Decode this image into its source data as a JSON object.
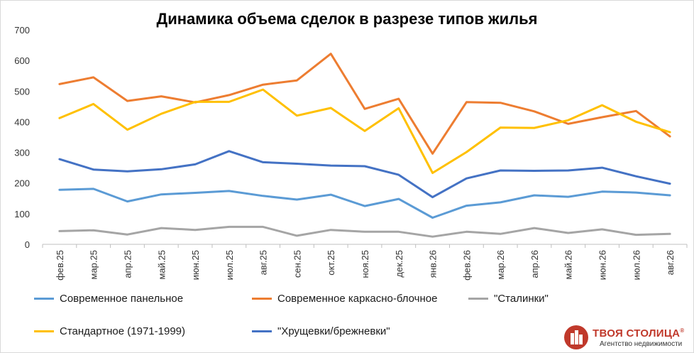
{
  "chart_data": {
    "type": "line",
    "title": "Динамика объема сделок в разрезе типов жилья",
    "xlabel": "",
    "ylabel": "",
    "ylim": [
      0,
      700
    ],
    "yticks": [
      "0",
      "100",
      "200",
      "300",
      "400",
      "500",
      "600",
      "700"
    ],
    "grid": false,
    "legend_position": "bottom",
    "categories": [
      "фев.25",
      "мар.25",
      "апр.25",
      "май.25",
      "июн.25",
      "июл.25",
      "авг.25",
      "сен.25",
      "окт.25",
      "ноя.25",
      "дек.25",
      "янв.26",
      "фев.26",
      "мар.26",
      "апр.26",
      "май.26",
      "июн.26",
      "июл.26",
      "авг.26"
    ],
    "series": [
      {
        "name": "Современное панельное",
        "color": "#5b9bd5",
        "values": [
          178,
          181,
          140,
          163,
          168,
          174,
          158,
          146,
          162,
          125,
          148,
          87,
          126,
          137,
          160,
          155,
          172,
          169,
          160
        ]
      },
      {
        "name": "Современное каркасно-блочное",
        "color": "#ed7d31",
        "values": [
          523,
          545,
          468,
          483,
          463,
          487,
          521,
          535,
          622,
          442,
          475,
          296,
          464,
          462,
          434,
          393,
          415,
          435,
          352
        ]
      },
      {
        "name": "\"Сталинки\"",
        "color": "#a5a5a5",
        "values": [
          43,
          46,
          32,
          53,
          47,
          57,
          57,
          28,
          47,
          41,
          41,
          25,
          41,
          34,
          53,
          37,
          49,
          31,
          34
        ]
      },
      {
        "name": "Стандартное (1971-1999)",
        "color": "#ffc000",
        "values": [
          412,
          458,
          374,
          426,
          465,
          465,
          505,
          420,
          445,
          370,
          444,
          233,
          301,
          381,
          380,
          405,
          454,
          400,
          366
        ]
      },
      {
        "name": "\"Хрущевки/брежневки\"",
        "color": "#4472c4",
        "values": [
          278,
          244,
          238,
          245,
          261,
          304,
          268,
          263,
          257,
          255,
          227,
          154,
          215,
          241,
          240,
          241,
          250,
          222,
          198
        ]
      }
    ]
  },
  "logo": {
    "text": "ТВОЯ СТОЛИЦА",
    "mark": "®",
    "subtitle": "Агентство недвижимости"
  }
}
